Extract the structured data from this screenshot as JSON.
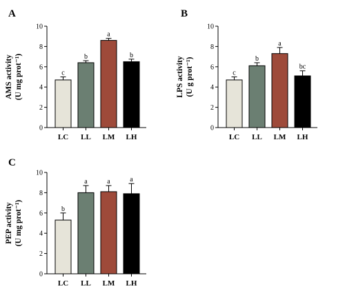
{
  "chart_data": [
    {
      "type": "bar",
      "panel": "A",
      "ylabel_line1": "AMS activity",
      "ylabel_line2": "(U mg prot⁻¹)",
      "categories": [
        "LC",
        "LL",
        "LM",
        "LH"
      ],
      "values": [
        4.7,
        6.4,
        8.6,
        6.5
      ],
      "errors": [
        0.3,
        0.2,
        0.2,
        0.25
      ],
      "letters": [
        "c",
        "b",
        "a",
        "b"
      ],
      "colors": [
        "#e6e4d9",
        "#6b7f72",
        "#9e4a3a",
        "#000000"
      ],
      "ylim": [
        0,
        10
      ],
      "yticks": [
        "0",
        "2",
        "4",
        "6",
        "8",
        "10"
      ]
    },
    {
      "type": "bar",
      "panel": "B",
      "ylabel_line1": "LPS activity",
      "ylabel_line2": "(U g prot⁻¹)",
      "categories": [
        "LC",
        "LL",
        "LM",
        "LH"
      ],
      "values": [
        4.7,
        6.1,
        7.3,
        5.1
      ],
      "errors": [
        0.3,
        0.3,
        0.6,
        0.5
      ],
      "letters": [
        "c",
        "b",
        "a",
        "bc"
      ],
      "colors": [
        "#e6e4d9",
        "#6b7f72",
        "#9e4a3a",
        "#000000"
      ],
      "ylim": [
        0,
        10
      ],
      "yticks": [
        "0",
        "2",
        "4",
        "6",
        "8",
        "10"
      ]
    },
    {
      "type": "bar",
      "panel": "C",
      "ylabel_line1": "PEP activity",
      "ylabel_line2": "(U mg prot⁻¹)",
      "categories": [
        "LC",
        "LL",
        "LM",
        "LH"
      ],
      "values": [
        5.3,
        8.0,
        8.1,
        7.9
      ],
      "errors": [
        0.7,
        0.7,
        0.6,
        1.0
      ],
      "letters": [
        "b",
        "a",
        "a",
        "a"
      ],
      "colors": [
        "#e6e4d9",
        "#6b7f72",
        "#9e4a3a",
        "#000000"
      ],
      "ylim": [
        0,
        10
      ],
      "yticks": [
        "0",
        "2",
        "4",
        "6",
        "8",
        "10"
      ]
    }
  ]
}
